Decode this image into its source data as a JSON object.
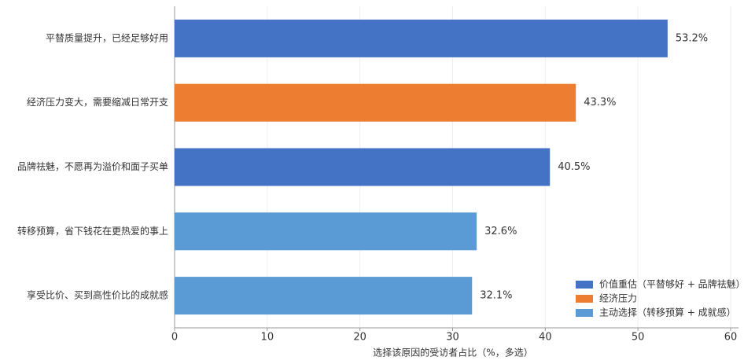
{
  "chart_data": {
    "type": "bar",
    "orientation": "horizontal",
    "categories": [
      "平替质量提升，已经足够好用",
      "经济压力变大，需要缩减日常开支",
      "品牌祛魅，不愿再为溢价和面子买单",
      "转移预算，省下钱花在更热爱的事上",
      "享受比价、买到高性价比的成就感"
    ],
    "series": [
      {
        "name": "价值重估（平替够好 + 品牌祛魅）",
        "color": "#4472c4",
        "values": [
          53.2,
          null,
          40.5,
          null,
          null
        ],
        "value_labels": [
          "53.2%",
          null,
          "40.5%",
          null,
          null
        ]
      },
      {
        "name": "经济压力",
        "color": "#ed7d31",
        "values": [
          null,
          43.3,
          null,
          null,
          null
        ],
        "value_labels": [
          null,
          "43.3%",
          null,
          null,
          null
        ]
      },
      {
        "name": "主动选择（转移预算 + 成就感）",
        "color": "#5b9bd5",
        "values": [
          null,
          null,
          null,
          32.6,
          32.1
        ],
        "value_labels": [
          null,
          null,
          null,
          "32.6%",
          "32.1%"
        ]
      }
    ],
    "xlabel": "选择该原因的受访者占比（%，多选）",
    "xlim": [
      0,
      60
    ],
    "xticks": [
      0,
      10,
      20,
      30,
      40,
      50,
      60
    ],
    "grid": true,
    "legend": "lower right"
  }
}
